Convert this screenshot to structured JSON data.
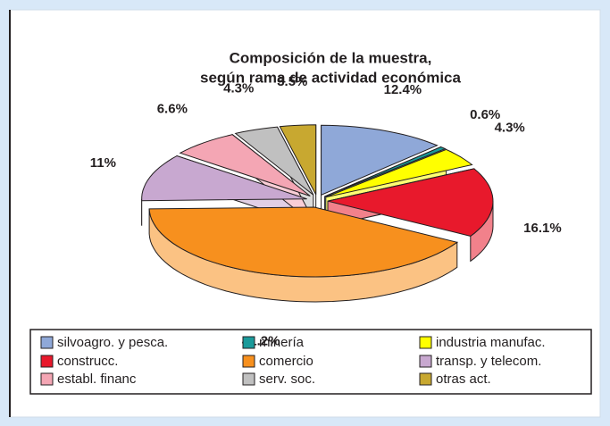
{
  "chart_data": {
    "type": "pie",
    "title": [
      "Composición de la muestra,",
      "según rama de actividad económica"
    ],
    "categories": [
      "silvoagro. y pesca.",
      "minería",
      "industria manufac.",
      "construcc.",
      "comercio",
      "transp. y telecom.",
      "establ. financ",
      "serv. soc.",
      "otras act."
    ],
    "values": [
      12.4,
      0.6,
      4.3,
      16.1,
      41.2,
      11,
      6.6,
      4.3,
      3.5
    ],
    "value_labels": [
      "12.4%",
      "0.6%",
      "4.3%",
      "16.1%",
      "41.2%",
      "11%",
      "6.6%",
      "4.3%",
      "3.5%"
    ],
    "colors": [
      "#8fa8d8",
      "#1a9a9a",
      "#ffff00",
      "#e8192c",
      "#f7901e",
      "#c8a8d0",
      "#f4a6b4",
      "#c0c0c0",
      "#c8a830"
    ],
    "legend": "bottom"
  }
}
